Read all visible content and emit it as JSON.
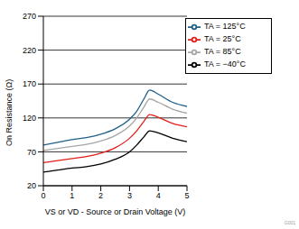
{
  "chart_data": {
    "type": "line",
    "x_label": "VS or VD - Source or Drain Voltage (V)",
    "y_label": "On Resistance (Ω)",
    "annotation": "G001",
    "x": [
      0,
      0.5,
      1,
      1.5,
      2,
      2.5,
      3,
      3.25,
      3.5,
      3.7,
      4,
      4.5,
      5
    ],
    "series": [
      {
        "name": "TA = 125°C",
        "color": "#1f5f8b",
        "values": [
          80,
          84,
          88,
          91,
          96,
          104,
          118,
          130,
          148,
          161,
          155,
          143,
          137
        ]
      },
      {
        "name": "TA = 85°C",
        "color": "#a6a6a6",
        "values": [
          72,
          75,
          78,
          81,
          86,
          94,
          108,
          120,
          136,
          148,
          143,
          133,
          127
        ]
      },
      {
        "name": "TA = 25°C",
        "color": "#e0201b",
        "values": [
          54,
          57,
          60,
          63,
          68,
          76,
          90,
          101,
          115,
          125,
          121,
          112,
          107
        ]
      },
      {
        "name": "TA = −40°C",
        "color": "#000000",
        "values": [
          40,
          43,
          46,
          48,
          52,
          59,
          70,
          80,
          92,
          101,
          98,
          90,
          85
        ]
      }
    ],
    "xlim": [
      0,
      5
    ],
    "xticks": [
      0,
      1,
      2,
      3,
      4,
      5
    ],
    "ylim": [
      20,
      270
    ],
    "yticks": [
      20,
      70,
      120,
      170,
      220,
      270
    ],
    "grid": true,
    "legend": "upper right"
  }
}
